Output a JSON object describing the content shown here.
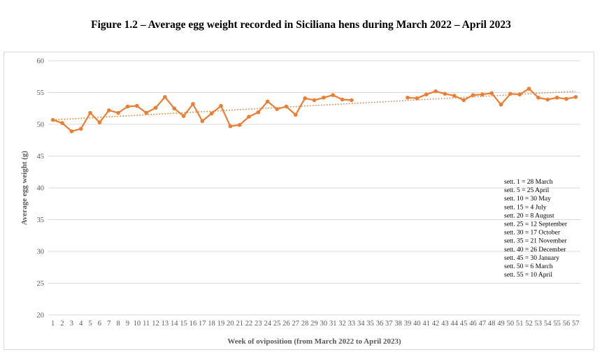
{
  "figure_title": "Figure 1.2 – Average egg weight recorded in Siciliana hens during March 2022 – April 2023",
  "colors": {
    "series": "#ed7d31",
    "grid": "#d9d9d9",
    "text": "#595959"
  },
  "chart_data": {
    "type": "line",
    "title": "",
    "xlabel": "Week of oviposition (from March 2022 to April 2023)",
    "ylabel": "Average egg weight (g)",
    "ylim": [
      20,
      60
    ],
    "yticks": [
      20,
      25,
      30,
      35,
      40,
      45,
      50,
      55,
      60
    ],
    "grid": true,
    "x": [
      1,
      2,
      3,
      4,
      5,
      6,
      7,
      8,
      9,
      10,
      11,
      12,
      13,
      14,
      15,
      16,
      17,
      18,
      19,
      20,
      21,
      22,
      23,
      24,
      25,
      26,
      27,
      28,
      29,
      30,
      31,
      32,
      33,
      34,
      35,
      36,
      37,
      38,
      39,
      40,
      41,
      42,
      43,
      44,
      45,
      46,
      47,
      48,
      49,
      50,
      51,
      52,
      53,
      54,
      55,
      56,
      57
    ],
    "series": [
      {
        "values": [
          50.7,
          50.2,
          48.9,
          49.3,
          51.8,
          50.3,
          52.2,
          51.8,
          52.8,
          52.9,
          51.8,
          52.6,
          54.3,
          52.5,
          51.3,
          53.2,
          50.5,
          51.7,
          52.9,
          49.7,
          49.9,
          51.2,
          51.9,
          53.6,
          52.4,
          52.8,
          51.5,
          54.1,
          53.8,
          54.2,
          54.6,
          53.9,
          53.8,
          null,
          null,
          null,
          null,
          null,
          54.2,
          54.1,
          54.7,
          55.2,
          54.8,
          54.5,
          53.8,
          54.6,
          54.7,
          54.9,
          53.1,
          54.8,
          54.7,
          55.6,
          54.2,
          53.9,
          54.2,
          54.0,
          54.3
        ]
      }
    ],
    "trendline": {
      "style": "dotted",
      "from": [
        1,
        50.7
      ],
      "to": [
        57,
        55.2
      ]
    },
    "annotations": [
      "sett. 1 = 28 March",
      "sett. 5 = 25 April",
      "sett. 10 = 30 May",
      "sett. 15 = 4 July",
      "sett. 20 = 8 August",
      "sett. 25 = 12 September",
      "sett. 30 = 17 October",
      "sett. 35 = 21 November",
      "sett. 40 = 26 December",
      "sett. 45 = 30 January",
      "sett. 50 = 6 March",
      "sett. 55 = 10 April"
    ]
  }
}
